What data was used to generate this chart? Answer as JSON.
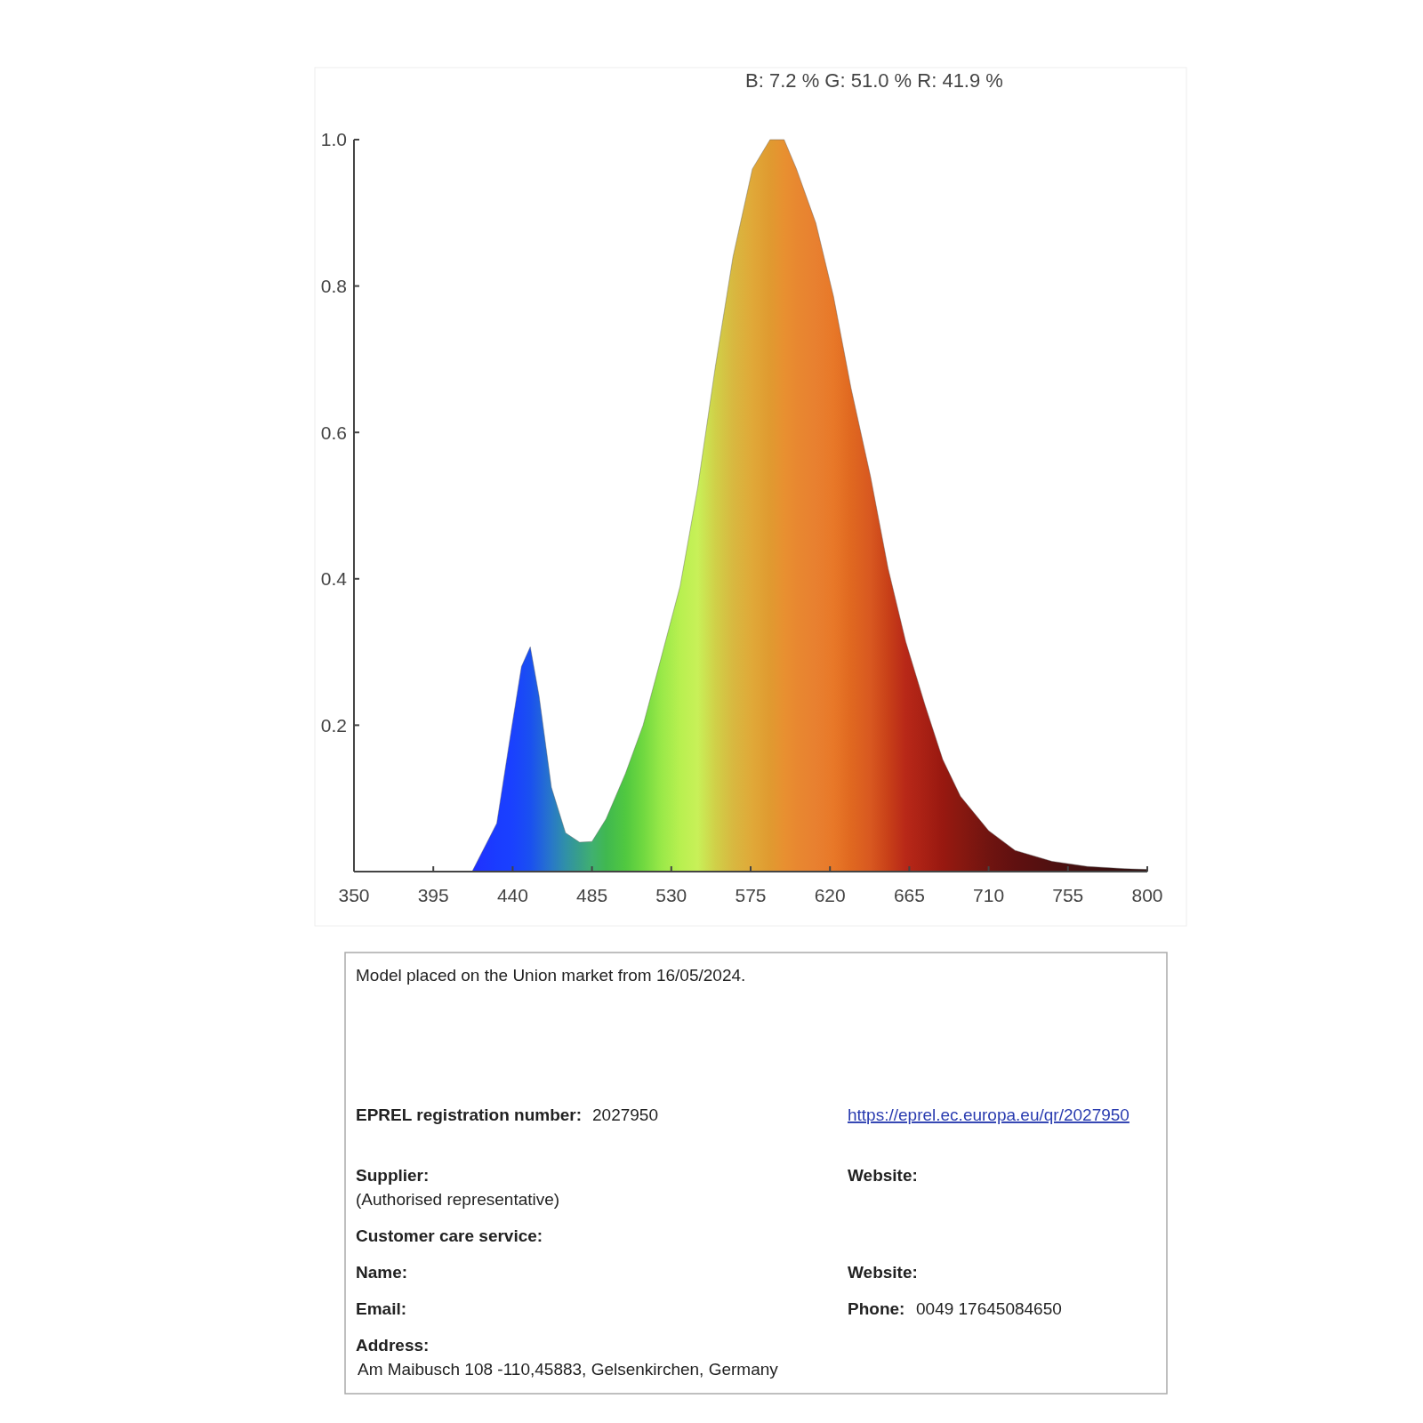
{
  "chart_data": [
    {
      "type": "area",
      "title": "B: 7.2 %  G: 51.0 %  R: 41.9 %",
      "x": [
        350,
        400,
        417,
        431,
        439,
        445,
        450,
        455,
        462,
        470,
        478,
        485,
        493,
        504,
        514,
        524,
        535,
        545,
        555,
        565,
        576,
        586,
        594,
        601,
        612,
        622,
        632,
        643,
        653,
        663,
        674,
        684,
        694,
        710,
        725,
        746,
        766,
        787,
        800
      ],
      "values": [
        0,
        0,
        0,
        0.066,
        0.19,
        0.28,
        0.307,
        0.24,
        0.115,
        0.053,
        0.04,
        0.041,
        0.072,
        0.134,
        0.2,
        0.29,
        0.39,
        0.525,
        0.69,
        0.84,
        0.96,
        1.0,
        1.0,
        0.96,
        0.886,
        0.786,
        0.66,
        0.54,
        0.414,
        0.314,
        0.227,
        0.153,
        0.103,
        0.056,
        0.029,
        0.014,
        0.007,
        0.004,
        0.003
      ],
      "colors": [
        "#2020ff",
        "#2020ff",
        "#2030ff",
        "#1a3cff",
        "#1a40ff",
        "#1a48f8",
        "#1a50f0",
        "#2060e0",
        "#2878c8",
        "#3090a8",
        "#38a088",
        "#40b070",
        "#40b850",
        "#50c840",
        "#70d840",
        "#98e848",
        "#b8f050",
        "#c8f058",
        "#d0d048",
        "#d8b840",
        "#e0a838",
        "#e09a30",
        "#e89030",
        "#e88830",
        "#e88030",
        "#e87828",
        "#e06820",
        "#d85820",
        "#c84018",
        "#b82818",
        "#a82014",
        "#981810",
        "#881810",
        "#701410",
        "#601010",
        "#501010",
        "#401010",
        "#381010",
        "#301010"
      ],
      "xlim": [
        350,
        800
      ],
      "xticks": [
        350,
        395,
        440,
        485,
        530,
        575,
        620,
        665,
        710,
        755,
        800
      ],
      "ylim": [
        0,
        1.0
      ],
      "yticks": [
        0.2,
        0.4,
        0.6,
        0.8,
        {
          "value": 1,
          "label": "1.0"
        }
      ],
      "grid": false
    },
    {
      "type": "other",
      "annotations": [
        "Model placed on the Union market from 16/05/2024.",
        "EPREL registration number:",
        "2027950",
        "https://eprel.ec.europa.eu/qr/2027950",
        "Supplier:",
        "(Authorised representative)",
        "Website:",
        "Customer care service:",
        "Name:",
        "Website:",
        "Email:",
        "Phone:",
        "0049 17645084650",
        "Address:",
        "Am Maibusch 108 -110,45883, Gelsenkirchen, Germany"
      ]
    }
  ]
}
